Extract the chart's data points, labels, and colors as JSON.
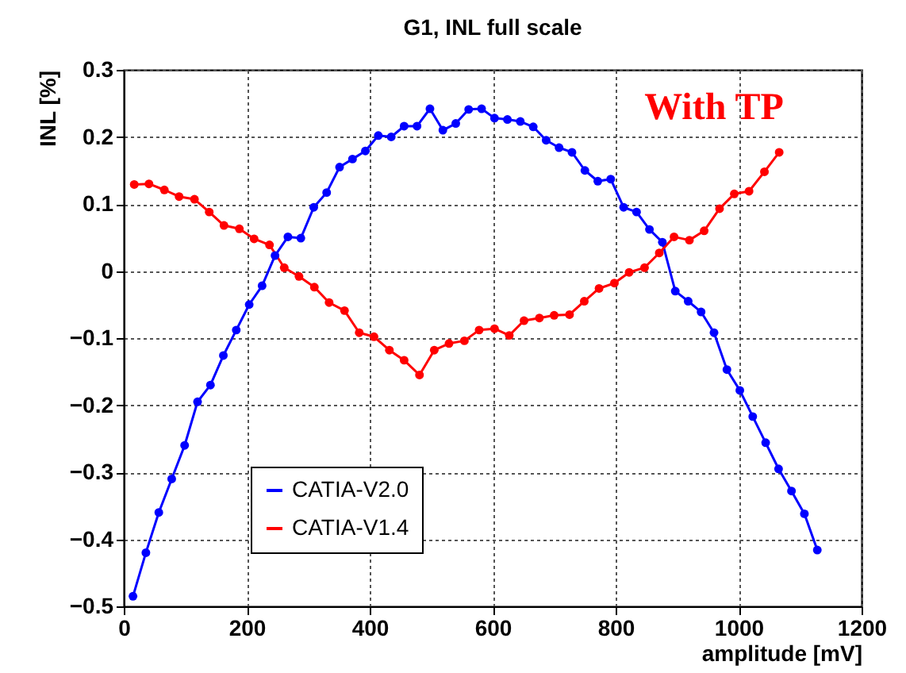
{
  "chart_data": {
    "type": "line",
    "title": "G1, INL full scale",
    "xlabel": "amplitude [mV]",
    "ylabel": "INL [%]",
    "xlim": [
      0,
      1200
    ],
    "xticks": [
      0,
      200,
      400,
      600,
      800,
      1000,
      1200
    ],
    "ylim": [
      -0.5,
      0.3
    ],
    "yticks": [
      -0.5,
      -0.4,
      -0.3,
      -0.2,
      -0.1,
      0,
      0.1,
      0.2,
      0.3
    ],
    "grid": true,
    "legend": "bottom",
    "marker": "circle",
    "line_style": "solid",
    "annotations": [
      "With TP"
    ],
    "series": [
      {
        "name": "CATIA-V2.0",
        "color": "#0000ff",
        "x": [
          15,
          36,
          57,
          78,
          99,
          120,
          141,
          162,
          183,
          204,
          225,
          246,
          267,
          288,
          309,
          330,
          351,
          372,
          393,
          414,
          435,
          456,
          477,
          498,
          519,
          540,
          561,
          582,
          603,
          624,
          645,
          666,
          687,
          708,
          729,
          750,
          771,
          792,
          813,
          834,
          855,
          876,
          897,
          918,
          939,
          960,
          981,
          1002,
          1023,
          1044,
          1065,
          1086,
          1107,
          1128
        ],
        "values": [
          -0.485,
          -0.42,
          -0.36,
          -0.31,
          -0.26,
          -0.195,
          -0.17,
          -0.126,
          -0.088,
          -0.05,
          -0.022,
          0.023,
          0.051,
          0.049,
          0.095,
          0.117,
          0.155,
          0.167,
          0.179,
          0.202,
          0.2,
          0.216,
          0.216,
          0.242,
          0.21,
          0.22,
          0.241,
          0.242,
          0.228,
          0.226,
          0.223,
          0.215,
          0.195,
          0.184,
          0.177,
          0.15,
          0.134,
          0.137,
          0.095,
          0.088,
          0.062,
          0.043,
          -0.03,
          -0.045,
          -0.061,
          -0.092,
          -0.147,
          -0.178,
          -0.217,
          -0.256,
          -0.295,
          -0.328,
          -0.362,
          -0.416
        ]
      },
      {
        "name": "CATIA-V1.4",
        "color": "#ff0000",
        "x": [
          17,
          41,
          66,
          90,
          115,
          139,
          163,
          188,
          212,
          237,
          261,
          285,
          310,
          334,
          359,
          383,
          407,
          432,
          456,
          481,
          505,
          529,
          554,
          578,
          603,
          627,
          651,
          676,
          700,
          725,
          749,
          773,
          798,
          822,
          847,
          871,
          895,
          920,
          944,
          969,
          993,
          1017,
          1042,
          1066
        ],
        "values": [
          0.129,
          0.13,
          0.121,
          0.111,
          0.107,
          0.088,
          0.068,
          0.063,
          0.048,
          0.039,
          0.005,
          -0.008,
          -0.024,
          -0.047,
          -0.059,
          -0.092,
          -0.098,
          -0.118,
          -0.133,
          -0.155,
          -0.118,
          -0.108,
          -0.104,
          -0.088,
          -0.086,
          -0.096,
          -0.074,
          -0.07,
          -0.066,
          -0.065,
          -0.045,
          -0.026,
          -0.018,
          -0.002,
          0.005,
          0.027,
          0.051,
          0.046,
          0.06,
          0.093,
          0.115,
          0.119,
          0.148,
          0.177
        ]
      }
    ]
  }
}
